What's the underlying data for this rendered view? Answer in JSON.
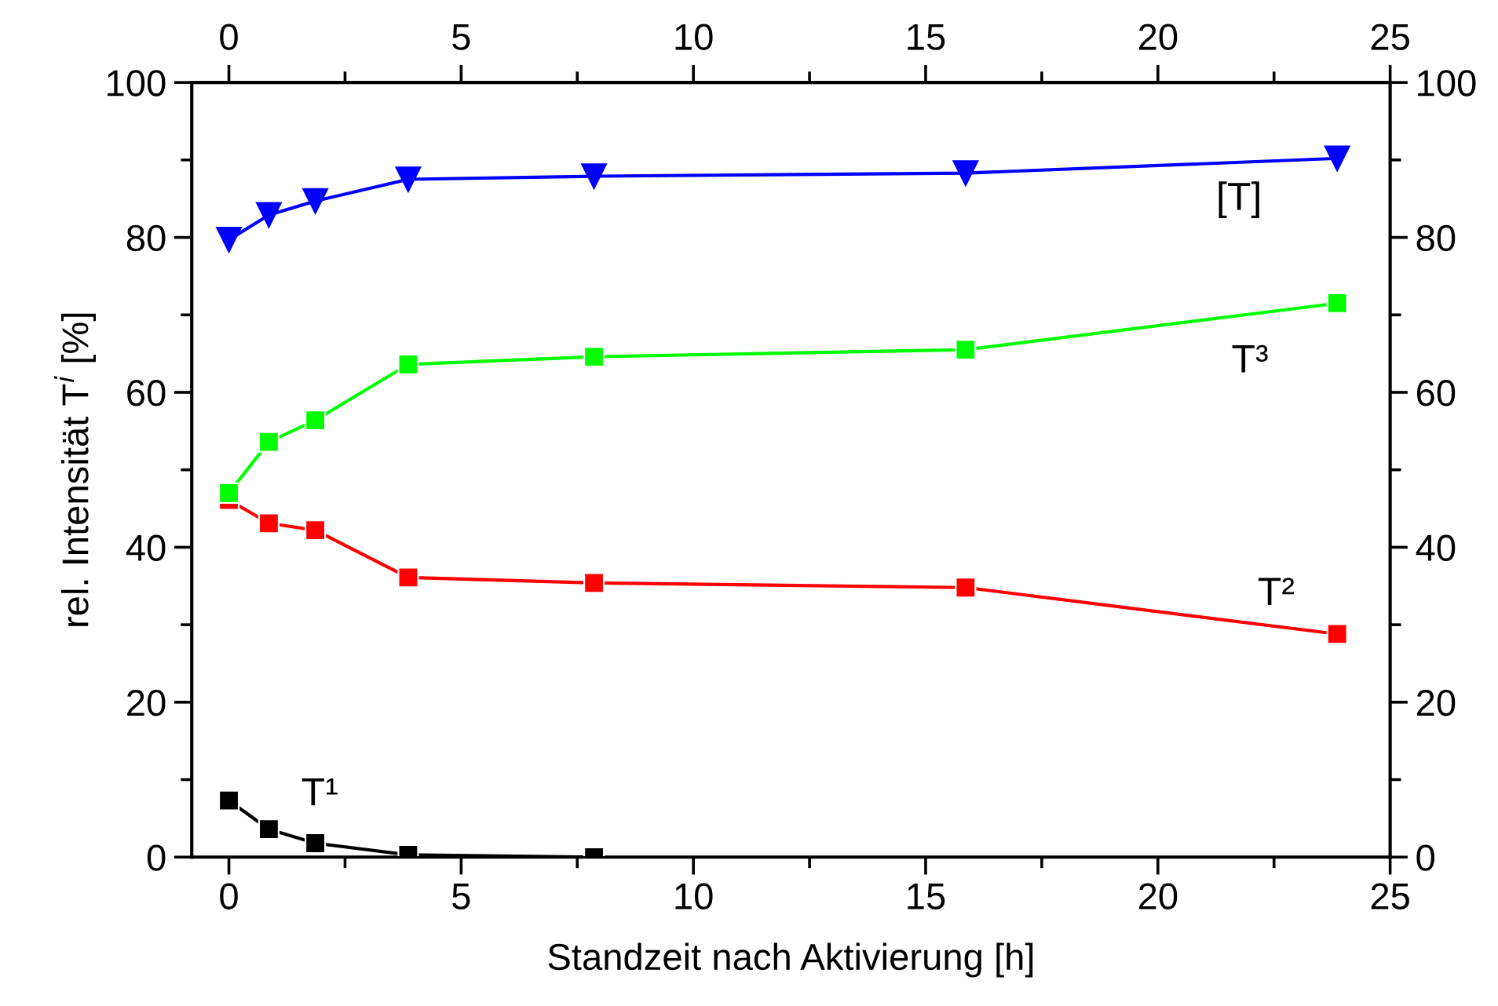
{
  "chart_data": {
    "type": "line",
    "xlabel": "Standzeit nach Aktivierung [h]",
    "ylabel": "rel. Intensität T$^{i}$ [%]",
    "xlim": [
      -0.8,
      25
    ],
    "xticks": [
      0,
      5,
      10,
      15,
      20,
      25
    ],
    "ylim": [
      0,
      100
    ],
    "yticks": [
      0,
      20,
      40,
      60,
      80,
      100
    ],
    "x2lim": [
      -0.8,
      25
    ],
    "x2ticks": [
      0,
      5,
      10,
      15,
      20,
      25
    ],
    "y2lim": [
      0,
      100
    ],
    "y2ticks": [
      0,
      20,
      40,
      60,
      80,
      100
    ],
    "x": [
      0,
      0.86,
      1.86,
      3.86,
      7.86,
      15.86,
      23.86
    ],
    "grid": false,
    "legend": false,
    "series": [
      {
        "name": "[T]",
        "color": "#0000ff",
        "marker": "triangle",
        "values": [
          79.7,
          82.9,
          84.7,
          87.5,
          87.9,
          88.3,
          90.2
        ]
      },
      {
        "name": "T³",
        "color": "#00ff00",
        "marker": "square",
        "values": [
          47.0,
          53.6,
          56.4,
          63.6,
          64.6,
          65.5,
          71.5
        ]
      },
      {
        "name": "T²",
        "color": "#ff0000",
        "marker": "square",
        "values": [
          46.1,
          43.1,
          42.2,
          36.1,
          35.4,
          34.8,
          28.8
        ]
      },
      {
        "name": "T¹",
        "color": "#000000",
        "marker": "square",
        "x": [
          0,
          0.86,
          1.86,
          3.86,
          7.86
        ],
        "values": [
          7.3,
          3.6,
          1.8,
          0.3,
          0
        ]
      }
    ]
  }
}
